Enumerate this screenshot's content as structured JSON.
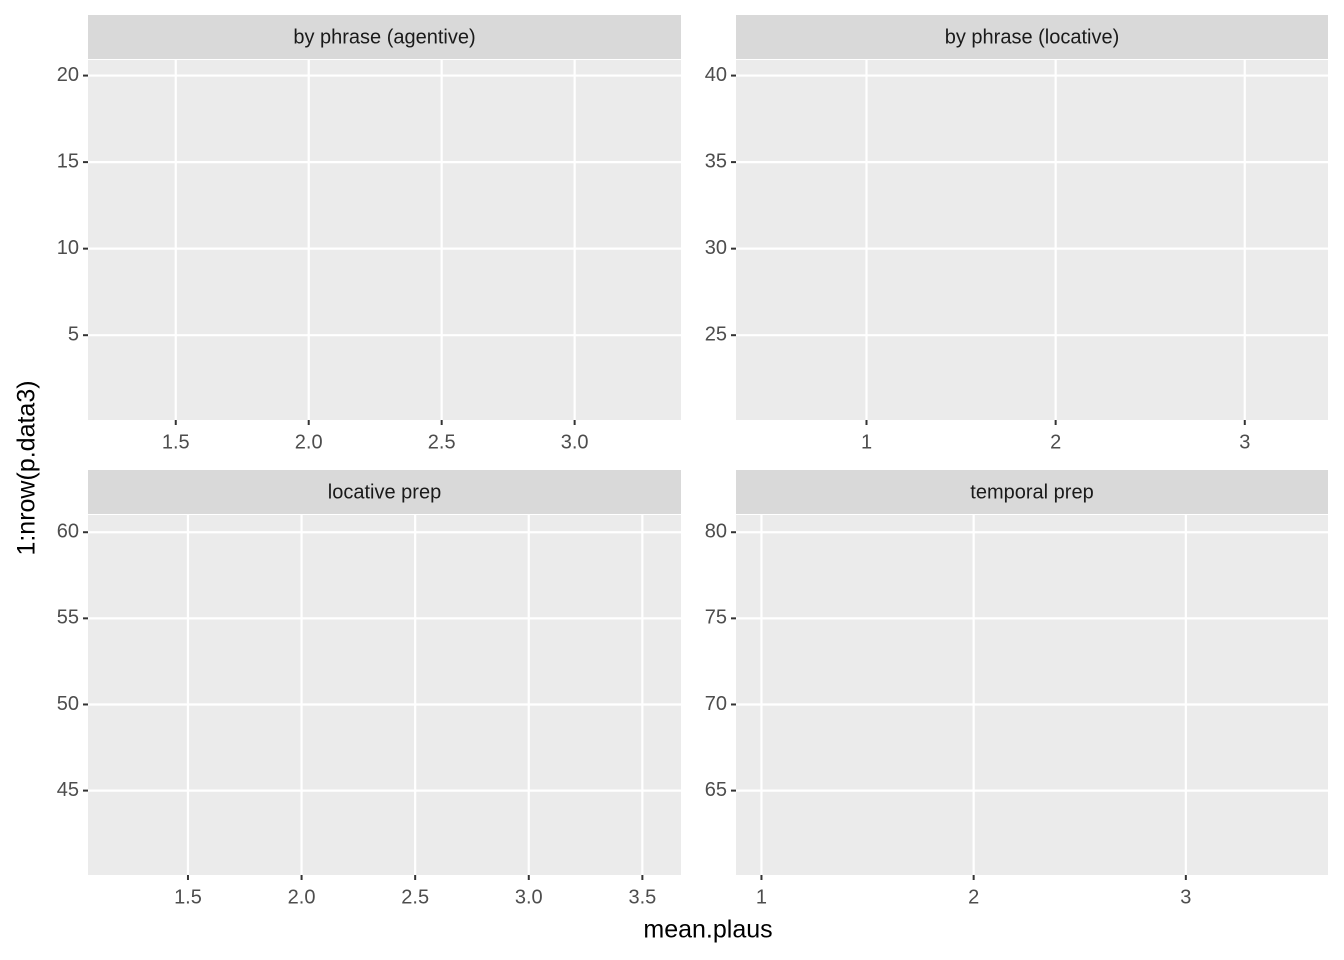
{
  "xlabel": "mean.plaus",
  "ylabel": "1:nrow(p.data3)",
  "chart_data": [
    {
      "type": "scatter",
      "title": "by phrase (agentive)",
      "x": [],
      "values": [],
      "xlim": [
        1.17,
        3.4
      ],
      "xticks": [
        1.5,
        {
          "value": 2,
          "label": "2.0"
        },
        2.5,
        {
          "value": 3,
          "label": "3.0"
        }
      ],
      "ylim": [
        0.1,
        20.9
      ],
      "yticks": [
        5,
        10,
        15,
        20
      ],
      "grid": true
    },
    {
      "type": "scatter",
      "title": "by phrase (locative)",
      "x": [],
      "values": [],
      "xlim": [
        0.31,
        3.44
      ],
      "xticks": [
        1,
        2,
        3
      ],
      "ylim": [
        20.1,
        40.9
      ],
      "yticks": [
        25,
        30,
        35,
        40
      ],
      "grid": true
    },
    {
      "type": "scatter",
      "title": "locative prep",
      "x": [],
      "values": [],
      "xlim": [
        1.06,
        3.67
      ],
      "xticks": [
        1.5,
        {
          "value": 2,
          "label": "2.0"
        },
        2.5,
        {
          "value": 3,
          "label": "3.0"
        },
        3.5
      ],
      "ylim": [
        40.1,
        61.0
      ],
      "yticks": [
        45,
        50,
        55,
        60
      ],
      "grid": true
    },
    {
      "type": "scatter",
      "title": "temporal prep",
      "x": [],
      "values": [],
      "xlim": [
        0.88,
        3.67
      ],
      "xticks": [
        1,
        2,
        3
      ],
      "ylim": [
        60.1,
        81.0
      ],
      "yticks": [
        65,
        70,
        75,
        80
      ],
      "grid": true
    }
  ]
}
